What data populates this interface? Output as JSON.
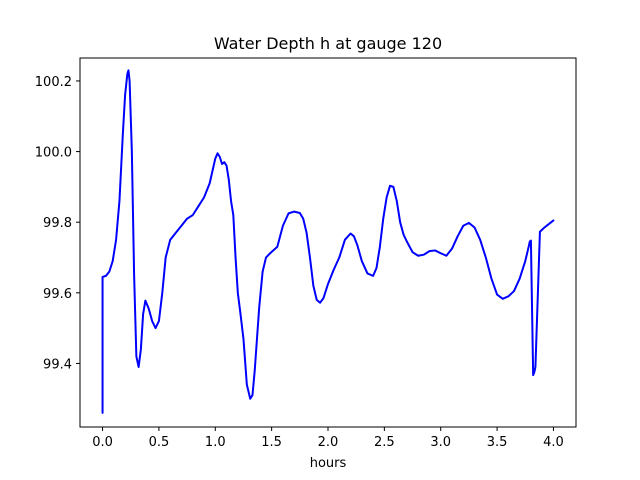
{
  "chart_data": {
    "type": "line",
    "title": "Water Depth h at gauge 120",
    "xlabel": "hours",
    "ylabel": "",
    "xlim": [
      -0.2,
      4.2
    ],
    "ylim": [
      99.22,
      100.265
    ],
    "x_ticks": [
      0.0,
      0.5,
      1.0,
      1.5,
      2.0,
      2.5,
      3.0,
      3.5,
      4.0
    ],
    "x_tick_labels": [
      "0.0",
      "0.5",
      "1.0",
      "1.5",
      "2.0",
      "2.5",
      "3.0",
      "3.5",
      "4.0"
    ],
    "y_ticks": [
      99.4,
      99.6,
      99.8,
      100.0,
      100.2
    ],
    "y_tick_labels": [
      "99.4",
      "99.6",
      "99.8",
      "100.0",
      "100.2"
    ],
    "grid": false,
    "legend": "none",
    "line_color": "#0000ff",
    "series": [
      {
        "x": [
          0.0,
          0.0,
          0.03,
          0.06,
          0.09,
          0.12,
          0.15,
          0.18,
          0.2,
          0.22,
          0.23,
          0.24,
          0.26,
          0.28,
          0.3,
          0.32,
          0.34,
          0.36,
          0.38,
          0.41,
          0.44,
          0.47,
          0.5,
          0.53,
          0.56,
          0.6,
          0.65,
          0.7,
          0.75,
          0.8,
          0.85,
          0.9,
          0.95,
          1.0,
          1.02,
          1.04,
          1.06,
          1.08,
          1.1,
          1.12,
          1.14,
          1.16,
          1.18,
          1.2,
          1.22,
          1.25,
          1.28,
          1.31,
          1.33,
          1.35,
          1.37,
          1.39,
          1.42,
          1.45,
          1.48,
          1.5,
          1.55,
          1.6,
          1.65,
          1.7,
          1.75,
          1.78,
          1.81,
          1.84,
          1.87,
          1.9,
          1.93,
          1.96,
          2.0,
          2.05,
          2.1,
          2.15,
          2.2,
          2.23,
          2.26,
          2.3,
          2.35,
          2.4,
          2.43,
          2.46,
          2.49,
          2.52,
          2.55,
          2.58,
          2.61,
          2.64,
          2.67,
          2.7,
          2.75,
          2.8,
          2.85,
          2.9,
          2.95,
          3.0,
          3.05,
          3.1,
          3.15,
          3.2,
          3.25,
          3.3,
          3.35,
          3.4,
          3.45,
          3.5,
          3.55,
          3.6,
          3.65,
          3.7,
          3.75,
          3.78,
          3.79,
          3.8,
          3.82,
          3.83,
          3.84,
          3.88,
          3.92,
          3.96,
          4.0
        ],
        "y": [
          99.26,
          99.645,
          99.648,
          99.66,
          99.69,
          99.75,
          99.86,
          100.05,
          100.16,
          100.22,
          100.23,
          100.2,
          100.0,
          99.65,
          99.42,
          99.39,
          99.44,
          99.54,
          99.578,
          99.555,
          99.52,
          99.5,
          99.52,
          99.6,
          99.7,
          99.75,
          99.77,
          99.79,
          99.81,
          99.82,
          99.845,
          99.87,
          99.91,
          99.98,
          99.995,
          99.985,
          99.965,
          99.97,
          99.96,
          99.92,
          99.86,
          99.82,
          99.7,
          99.6,
          99.55,
          99.47,
          99.34,
          99.3,
          99.31,
          99.38,
          99.47,
          99.56,
          99.66,
          99.7,
          99.71,
          99.716,
          99.73,
          99.79,
          99.825,
          99.83,
          99.826,
          99.81,
          99.77,
          99.7,
          99.62,
          99.58,
          99.572,
          99.585,
          99.625,
          99.665,
          99.7,
          99.75,
          99.768,
          99.76,
          99.735,
          99.69,
          99.655,
          99.648,
          99.67,
          99.73,
          99.81,
          99.87,
          99.903,
          99.9,
          99.86,
          99.8,
          99.765,
          99.745,
          99.715,
          99.705,
          99.708,
          99.718,
          99.72,
          99.712,
          99.705,
          99.725,
          99.76,
          99.79,
          99.798,
          99.785,
          99.75,
          99.7,
          99.64,
          99.595,
          99.583,
          99.59,
          99.605,
          99.64,
          99.69,
          99.73,
          99.745,
          99.748,
          99.367,
          99.375,
          99.39,
          99.773,
          99.785,
          99.795,
          99.805
        ]
      }
    ]
  }
}
